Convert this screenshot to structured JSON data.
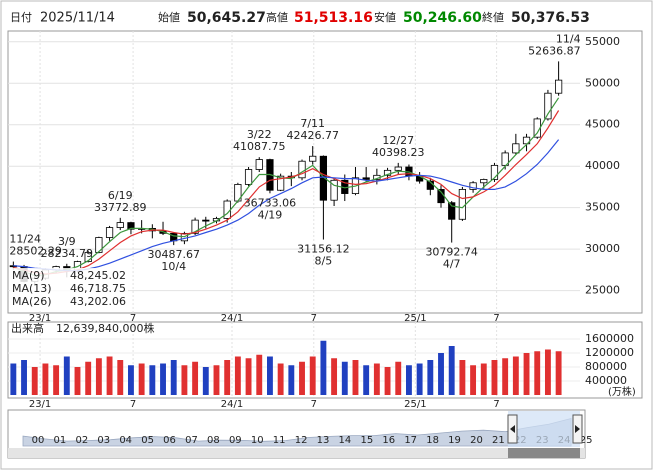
{
  "header": {
    "date_label": "日付",
    "date": "2025/11/14",
    "open_label": "始値",
    "open": "50,645.27",
    "high_label": "高値",
    "high": "51,513.16",
    "low_label": "安値",
    "low": "50,246.60",
    "close_label": "終値",
    "close": "50,376.53"
  },
  "chart_data": [
    {
      "type": "candlestick",
      "xlim": [
        -0.5,
        53
      ],
      "ylim": [
        22300,
        56300
      ],
      "yticks": [
        25000,
        30000,
        35000,
        40000,
        45000,
        50000,
        55000
      ],
      "grid": true,
      "legend_position": "bottom-left",
      "up_color": "#ffffff",
      "down_color": "#000000",
      "xticks": [
        {
          "value": 2.5,
          "label": "23/1"
        },
        {
          "value": 11.2,
          "label": "7"
        },
        {
          "value": 20.45,
          "label": "24/1"
        },
        {
          "value": 28.1,
          "label": "7"
        },
        {
          "value": 37.6,
          "label": "25/1"
        },
        {
          "value": 45.2,
          "label": "7"
        }
      ],
      "ohlc": [
        [
          28000,
          28502.29,
          27500,
          27900
        ],
        [
          27900,
          28100,
          26000,
          26100
        ],
        [
          26100,
          26800,
          25700,
          26500
        ],
        [
          26500,
          27700,
          26300,
          27500
        ],
        [
          27500,
          28000,
          27100,
          27900
        ],
        [
          27900,
          28234.79,
          26600,
          27400
        ],
        [
          27400,
          28600,
          27200,
          28500
        ],
        [
          28500,
          29800,
          28400,
          29600
        ],
        [
          29600,
          31500,
          29500,
          31400
        ],
        [
          31400,
          32800,
          31000,
          32600
        ],
        [
          32600,
          33772.89,
          32300,
          33200
        ],
        [
          33200,
          33300,
          31800,
          32400
        ],
        [
          32400,
          33500,
          31900,
          32500
        ],
        [
          32500,
          33000,
          31300,
          32200
        ],
        [
          32200,
          33300,
          31700,
          31900
        ],
        [
          31900,
          32000,
          30487.67,
          31000
        ],
        [
          31000,
          32100,
          30600,
          31900
        ],
        [
          31900,
          33800,
          31700,
          33500
        ],
        [
          33500,
          33900,
          32500,
          33400
        ],
        [
          33400,
          33900,
          33100,
          33700
        ],
        [
          33700,
          36000,
          33200,
          35800
        ],
        [
          35800,
          38000,
          35600,
          37800
        ],
        [
          37800,
          39900,
          37600,
          39600
        ],
        [
          39600,
          41087.75,
          39300,
          40800
        ],
        [
          40800,
          40900,
          36733.06,
          37100
        ],
        [
          37100,
          39100,
          37000,
          38800
        ],
        [
          38800,
          39300,
          37600,
          38600
        ],
        [
          38600,
          40800,
          38300,
          40600
        ],
        [
          40600,
          42426.77,
          40200,
          41200
        ],
        [
          41200,
          41300,
          31156.12,
          35900
        ],
        [
          35900,
          38500,
          35200,
          38300
        ],
        [
          38300,
          39000,
          35800,
          36700
        ],
        [
          36700,
          39900,
          36500,
          38600
        ],
        [
          38600,
          39900,
          38100,
          38400
        ],
        [
          38400,
          39700,
          37800,
          38900
        ],
        [
          38900,
          39800,
          38300,
          39500
        ],
        [
          39500,
          40398.23,
          39000,
          39900
        ],
        [
          39900,
          40200,
          38300,
          38800
        ],
        [
          38800,
          39300,
          37900,
          38200
        ],
        [
          38200,
          38600,
          36500,
          37200
        ],
        [
          37200,
          37700,
          35000,
          35600
        ],
        [
          35600,
          35800,
          30792.74,
          33600
        ],
        [
          33600,
          37500,
          33400,
          37200
        ],
        [
          37200,
          38200,
          36800,
          38000
        ],
        [
          38000,
          38500,
          37300,
          38400
        ],
        [
          38400,
          40400,
          38100,
          40100
        ],
        [
          40100,
          41900,
          39600,
          41600
        ],
        [
          41600,
          43900,
          41400,
          42700
        ],
        [
          42700,
          43900,
          41800,
          43500
        ],
        [
          43500,
          45900,
          43300,
          45700
        ],
        [
          45700,
          49200,
          45500,
          48800
        ],
        [
          48800,
          52636.87,
          48500,
          50376.53
        ]
      ],
      "series": [
        {
          "name": "MA(9)",
          "color": "#3c963c",
          "text_color": "#6a6a6a",
          "legend_value": {
            "value": 48245.02,
            "label": "48,245.02"
          },
          "values": [
            27800,
            27300,
            26800,
            26900,
            27300,
            27500,
            27900,
            28600,
            29700,
            30900,
            32000,
            32500,
            32500,
            32400,
            32100,
            31600,
            31500,
            32100,
            32800,
            33400,
            34300,
            35800,
            37500,
            39000,
            39000,
            38600,
            38500,
            39300,
            40100,
            38700,
            37700,
            37400,
            37600,
            38100,
            38500,
            39000,
            39400,
            39300,
            38800,
            38100,
            36900,
            35200,
            35000,
            36300,
            37500,
            38600,
            40000,
            41400,
            42600,
            44000,
            46300,
            48245.02
          ]
        },
        {
          "name": "MA(13)",
          "color": "#e03030",
          "text_color": "#e03030",
          "legend_value": {
            "value": 46718.75,
            "label": "46,718.75"
          },
          "values": [
            27800,
            27500,
            27200,
            27000,
            27100,
            27300,
            27500,
            28000,
            28800,
            29800,
            30800,
            31600,
            32100,
            32300,
            32300,
            32000,
            31800,
            32000,
            32400,
            32900,
            33500,
            34500,
            36000,
            37500,
            38300,
            38500,
            38700,
            39100,
            39700,
            39000,
            38500,
            38000,
            37800,
            37900,
            38200,
            38600,
            39000,
            39100,
            38900,
            38500,
            37800,
            36700,
            36100,
            36300,
            36900,
            37700,
            38900,
            40200,
            41400,
            42700,
            44600,
            46718.75
          ]
        },
        {
          "name": "MA(26)",
          "color": "#3050e0",
          "text_color": "#3050e0",
          "legend_value": {
            "value": 43202.06,
            "label": "43,202.06"
          },
          "values": [
            28000,
            27900,
            27700,
            27600,
            27500,
            27400,
            27400,
            27600,
            27900,
            28300,
            28800,
            29300,
            29800,
            30300,
            30700,
            31000,
            31300,
            31600,
            32000,
            32400,
            32900,
            33500,
            34300,
            35300,
            36100,
            36700,
            37300,
            38000,
            38600,
            38700,
            38600,
            38500,
            38500,
            38300,
            38200,
            38400,
            38600,
            38800,
            38900,
            38800,
            38500,
            38100,
            37700,
            37400,
            37200,
            37200,
            37500,
            38200,
            39100,
            40200,
            41600,
            43202.06
          ]
        }
      ],
      "annotations": [
        {
          "date": "11/24",
          "value": 28502.29
        },
        {
          "date": "3/9",
          "value": 28234.79
        },
        {
          "date": "6/19",
          "value": 33772.89
        },
        {
          "date": "10/4",
          "value": 30487.67
        },
        {
          "date": "3/22",
          "value": 41087.75
        },
        {
          "date": "4/19",
          "value": 36733.06
        },
        {
          "date": "7/11",
          "value": 42426.77
        },
        {
          "date": "8/5",
          "value": 31156.12
        },
        {
          "date": "12/27",
          "value": 40398.23
        },
        {
          "date": "4/7",
          "value": 30792.74
        },
        {
          "date": "11/4",
          "value": 52636.87
        }
      ]
    },
    {
      "type": "bar",
      "title": "出来高",
      "total": "12,639,840,000株",
      "unit": "(万株)",
      "up_color": "#e03030",
      "down_color": "#2040c0",
      "xlim": [
        -0.5,
        53
      ],
      "ylim": [
        0,
        1800000
      ],
      "yticks": [
        400000,
        800000,
        1200000,
        1600000
      ],
      "xticks": [
        {
          "value": 2.5,
          "label": "23/1"
        },
        {
          "value": 11.2,
          "label": "7"
        },
        {
          "value": 20.45,
          "label": "24/1"
        },
        {
          "value": 28.1,
          "label": "7"
        },
        {
          "value": 37.6,
          "label": "25/1"
        },
        {
          "value": 45.2,
          "label": "7"
        }
      ],
      "values": [
        900000,
        1000000,
        800000,
        900000,
        850000,
        1100000,
        800000,
        950000,
        1050000,
        1100000,
        1000000,
        850000,
        900000,
        850000,
        900000,
        1000000,
        850000,
        950000,
        800000,
        850000,
        1000000,
        1100000,
        1050000,
        1150000,
        1100000,
        900000,
        850000,
        950000,
        1100000,
        1550000,
        1050000,
        950000,
        1000000,
        850000,
        900000,
        800000,
        950000,
        850000,
        900000,
        1000000,
        1200000,
        1400000,
        1000000,
        850000,
        900000,
        1000000,
        1050000,
        1100000,
        1200000,
        1250000,
        1300000,
        1250000
      ]
    }
  ],
  "navigator": {
    "labels": [
      "00",
      "01",
      "02",
      "03",
      "04",
      "05",
      "06",
      "07",
      "08",
      "09",
      "10",
      "11",
      "12",
      "13",
      "14",
      "15",
      "16",
      "17",
      "18",
      "19",
      "20",
      "21",
      "22",
      "23",
      "24",
      "25"
    ],
    "ylim": [
      0,
      60000
    ],
    "values": [
      18000,
      13000,
      9000,
      10000,
      11500,
      15000,
      17000,
      15000,
      9000,
      10500,
      10200,
      8500,
      10000,
      15500,
      17500,
      19000,
      19000,
      22500,
      20000,
      23500,
      27000,
      28800,
      26000,
      33500,
      39800,
      50000
    ]
  }
}
